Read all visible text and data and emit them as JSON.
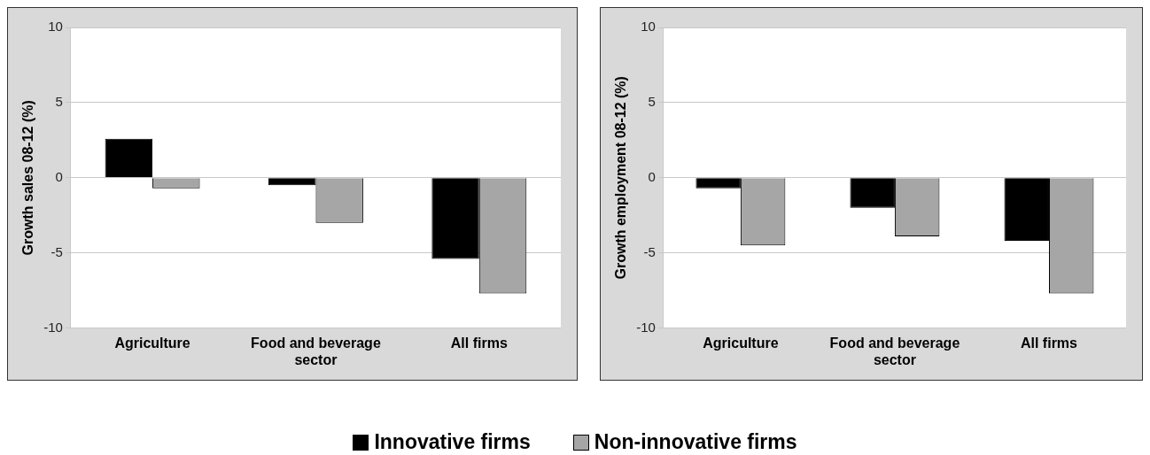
{
  "chart_data": [
    {
      "type": "bar",
      "ylabel": "Growth sales 08-12 (%)",
      "categories": [
        "Agriculture",
        "Food and beverage sector",
        "All firms"
      ],
      "series": [
        {
          "name": "Innovative firms",
          "color": "#000000",
          "values": [
            2.6,
            -0.5,
            -5.4
          ]
        },
        {
          "name": "Non-innovative firms",
          "color": "#a6a6a6",
          "values": [
            -0.7,
            -3.0,
            -7.7
          ]
        }
      ],
      "ylim": [
        -10,
        10
      ],
      "yticks": [
        -10,
        -5,
        0,
        5,
        10
      ],
      "grid": "y",
      "legend": "bottom"
    },
    {
      "type": "bar",
      "ylabel": "Growth employment 08-12 (%)",
      "categories": [
        "Agriculture",
        "Food and beverage sector",
        "All firms"
      ],
      "series": [
        {
          "color": "#000000",
          "values": [
            -0.7,
            -2.0,
            -4.2
          ]
        },
        {
          "color": "#a6a6a6",
          "values": [
            -4.5,
            -3.9,
            -7.7
          ]
        }
      ],
      "ylim": [
        -10,
        10
      ],
      "yticks": [
        -10,
        -5,
        0,
        5,
        10
      ],
      "grid": "y"
    }
  ]
}
